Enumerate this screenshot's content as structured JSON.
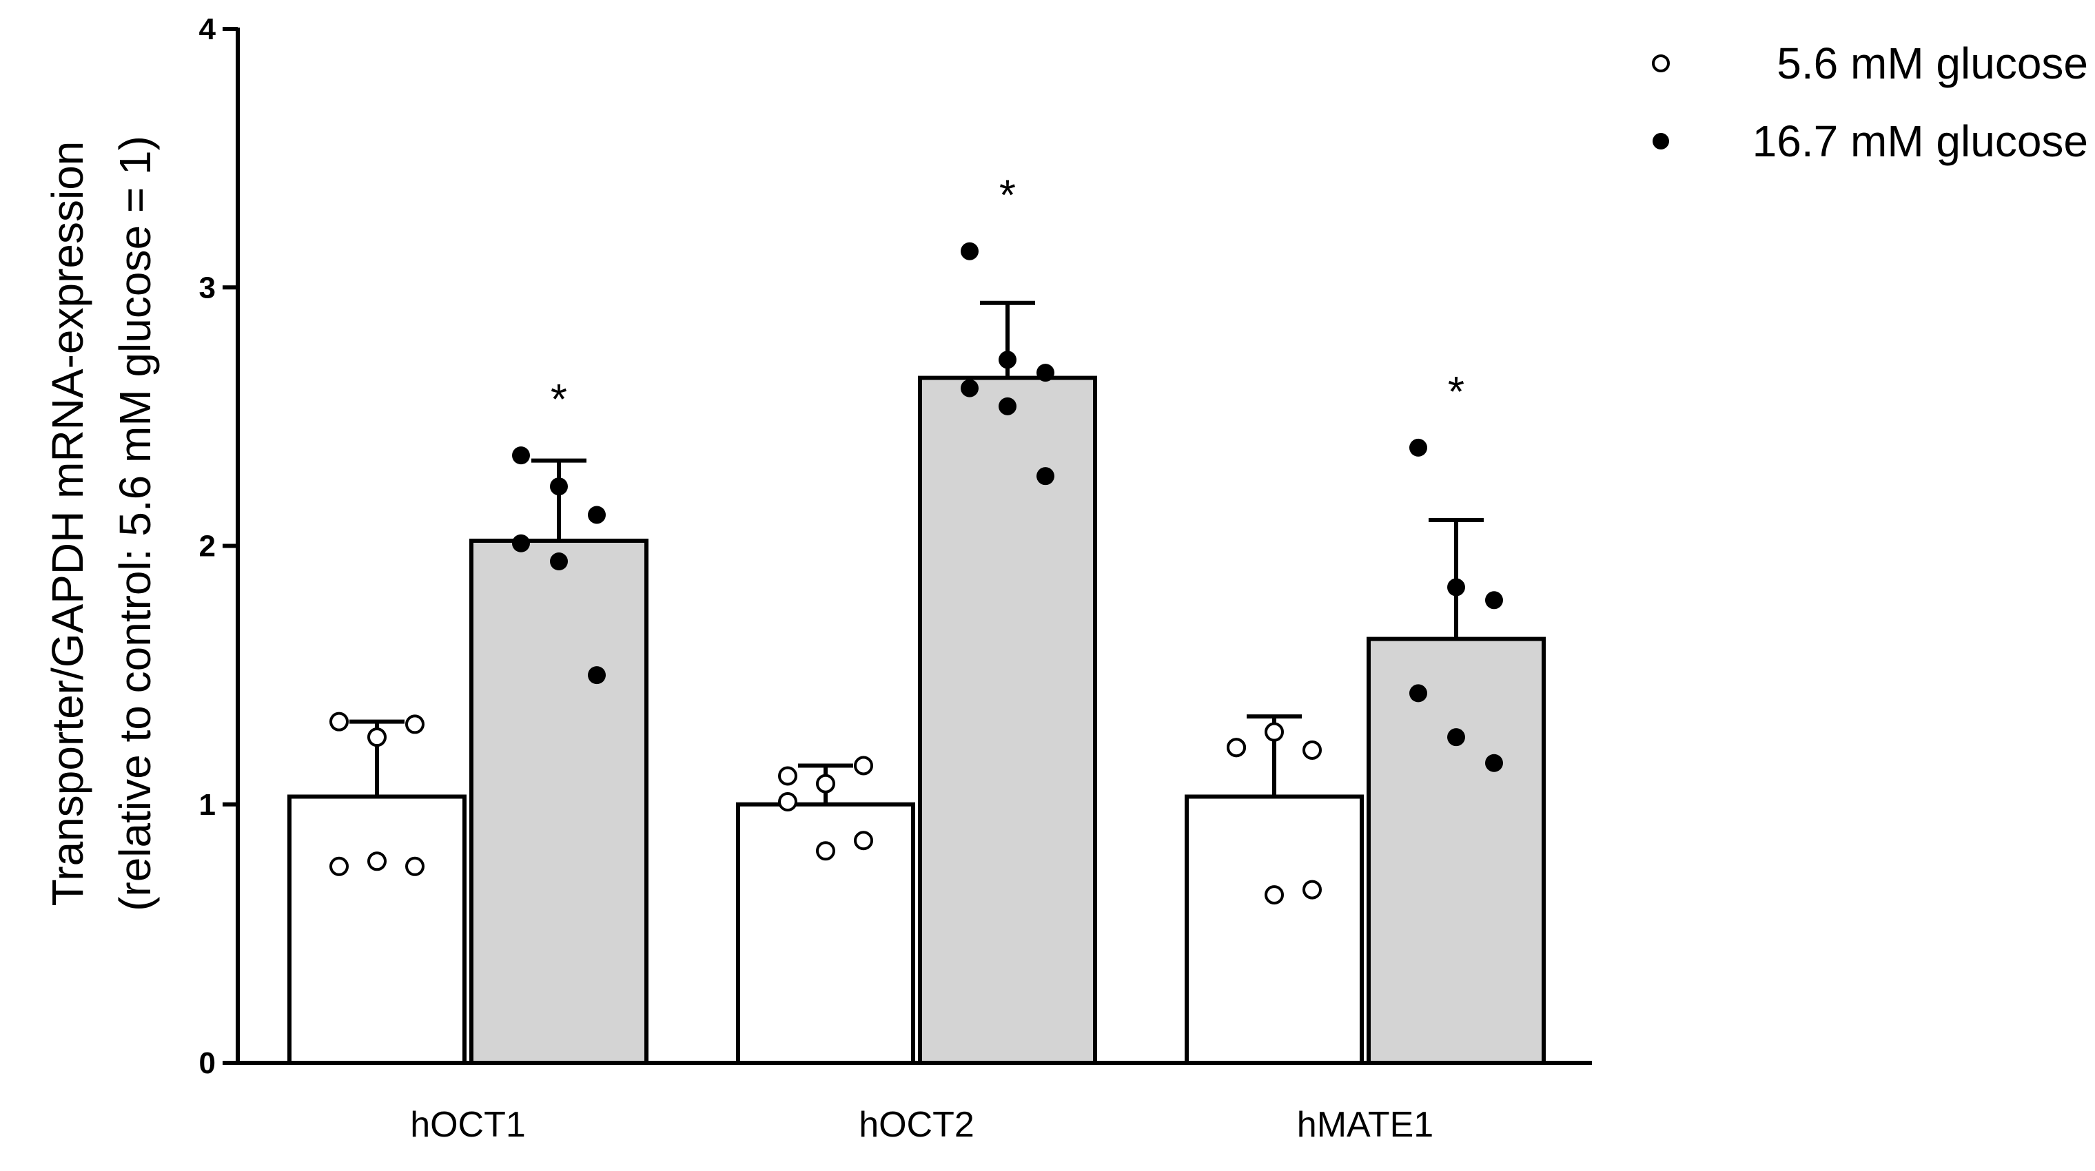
{
  "chart_data": {
    "type": "bar",
    "title": "",
    "xlabel": "",
    "ylabel_line1": "Transporter/GAPDH mRNA-expression",
    "ylabel_line2": "(relative to control: 5.6 mM glucose = 1)",
    "ylim": [
      0,
      4
    ],
    "yticks": [
      "0",
      "1",
      "2",
      "3",
      "4"
    ],
    "categories": [
      "hOCT1",
      "hOCT2",
      "hMATE1"
    ],
    "significance_marker": "*",
    "legend_position": "top-right",
    "series": [
      {
        "name": "5.6 mM glucose",
        "fill": "#ffffff",
        "point_style": "open",
        "values": [
          1.03,
          1.0,
          1.03
        ],
        "sd": [
          0.29,
          0.15,
          0.31
        ],
        "points": [
          [
            1.32,
            1.26,
            1.31,
            0.76,
            0.78,
            0.76
          ],
          [
            1.11,
            1.08,
            1.15,
            1.01,
            0.82,
            0.86
          ],
          [
            1.22,
            1.28,
            1.21,
            1.22,
            0.65,
            0.67
          ]
        ],
        "significant": [
          false,
          false,
          false
        ]
      },
      {
        "name": "16.7 mM glucose",
        "fill": "#d4d4d4",
        "point_style": "filled",
        "values": [
          2.02,
          2.65,
          1.64
        ],
        "sd": [
          0.31,
          0.29,
          0.46
        ],
        "points": [
          [
            2.35,
            2.23,
            2.12,
            2.01,
            1.94,
            1.5
          ],
          [
            3.14,
            2.72,
            2.67,
            2.61,
            2.54,
            2.27
          ],
          [
            2.38,
            1.84,
            1.79,
            1.43,
            1.26,
            1.16
          ]
        ],
        "significant": [
          true,
          true,
          true
        ]
      }
    ]
  }
}
